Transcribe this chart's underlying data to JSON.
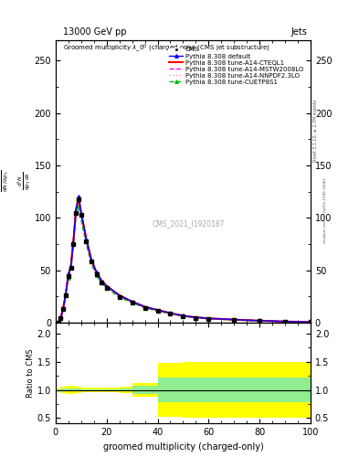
{
  "title_top": "13000 GeV pp",
  "title_right": "Jets",
  "watermark": "CMS_2021_I1920187",
  "rivet_text": "Rivet 3.1.10, ≥ 2.7M events",
  "arxiv_text": "mcplots.cern.ch [arXiv:1306.3436]",
  "xlabel": "groomed multiplicity (charged-only)",
  "ylabel_line1": "mathrm d²N",
  "ylabel_line2": "mathrm d pₜ mathrm d lambda",
  "ylabel_ratio": "Ratio to CMS",
  "xlim": [
    0,
    100
  ],
  "ylim_main": [
    0,
    270
  ],
  "ylim_ratio": [
    0.4,
    2.2
  ],
  "yticks_main": [
    0,
    50,
    100,
    150,
    200,
    250
  ],
  "yticks_ratio": [
    0.5,
    1.0,
    1.5,
    2.0
  ],
  "cms_x": [
    1,
    2,
    3,
    4,
    5,
    6,
    7,
    8,
    9,
    10,
    12,
    14,
    16,
    18,
    20,
    25,
    30,
    35,
    40,
    45,
    50,
    55,
    60,
    70,
    80,
    90,
    100
  ],
  "cms_y": [
    0,
    4,
    13,
    26,
    44,
    52,
    75,
    105,
    118,
    103,
    78,
    58,
    46,
    38,
    33,
    24,
    19,
    14,
    11,
    8.5,
    6,
    4.5,
    3.5,
    2.5,
    1.5,
    1,
    0.5
  ],
  "default_x": [
    1,
    2,
    3,
    4,
    5,
    6,
    7,
    8,
    9,
    10,
    12,
    14,
    16,
    18,
    20,
    25,
    30,
    35,
    40,
    45,
    50,
    55,
    60,
    70,
    80,
    90,
    100
  ],
  "default_y": [
    0,
    4.5,
    14,
    28,
    46,
    54,
    79,
    108,
    120,
    105,
    80,
    60,
    48,
    40,
    35,
    26,
    20,
    15,
    12,
    9,
    6.5,
    5,
    4,
    2.8,
    1.8,
    1,
    0.5
  ],
  "cteql1_x": [
    1,
    2,
    3,
    4,
    5,
    6,
    7,
    8,
    9,
    10,
    12,
    14,
    16,
    18,
    20,
    25,
    30,
    35,
    40,
    45,
    50,
    55,
    60,
    70,
    80,
    90,
    100
  ],
  "cteql1_y": [
    0,
    4.5,
    14,
    28,
    46,
    54,
    79,
    108,
    120,
    105,
    80,
    60,
    48,
    40,
    35,
    26,
    20,
    15,
    12,
    9,
    6.5,
    5,
    4,
    2.8,
    1.8,
    1,
    0.5
  ],
  "mstw_x": [
    1,
    2,
    3,
    4,
    5,
    6,
    7,
    8,
    9,
    10,
    12,
    14,
    16,
    18,
    20,
    25,
    30,
    35,
    40,
    45,
    50,
    55,
    60,
    70,
    80,
    90,
    100
  ],
  "mstw_y": [
    0,
    4.5,
    14,
    28,
    46,
    54,
    79,
    108,
    120,
    105,
    80,
    60,
    48,
    40,
    35,
    26,
    20,
    15,
    12,
    9,
    6.5,
    5,
    4,
    2.8,
    1.8,
    1,
    0.5
  ],
  "nnpdf_x": [
    1,
    2,
    3,
    4,
    5,
    6,
    7,
    8,
    9,
    10,
    12,
    14,
    16,
    18,
    20,
    25,
    30,
    35,
    40,
    45,
    50,
    55,
    60,
    70,
    80,
    90,
    100
  ],
  "nnpdf_y": [
    0,
    4.5,
    14,
    28,
    46,
    54,
    79,
    108,
    120,
    105,
    80,
    60,
    48,
    40,
    35,
    26,
    20,
    15,
    12,
    9,
    6.5,
    5,
    4,
    2.8,
    1.8,
    1,
    0.5
  ],
  "cuetp_x": [
    1,
    2,
    3,
    4,
    5,
    6,
    7,
    8,
    9,
    10,
    12,
    14,
    16,
    18,
    20,
    25,
    30,
    35,
    40,
    45,
    50,
    55,
    60,
    70,
    80,
    90,
    100
  ],
  "cuetp_y": [
    0,
    4,
    13,
    26,
    43,
    50,
    74,
    102,
    112,
    98,
    75,
    56,
    45,
    38,
    33,
    24,
    19,
    14,
    11,
    8.5,
    6,
    4.5,
    3.5,
    2.5,
    1.5,
    1,
    0.5
  ],
  "ratio_yellow_x_edges": [
    0,
    2,
    4,
    6,
    8,
    10,
    15,
    20,
    25,
    30,
    40,
    50,
    100
  ],
  "ratio_yellow_y_lo": [
    0.97,
    0.95,
    0.93,
    0.93,
    0.95,
    0.96,
    0.96,
    0.96,
    0.95,
    0.88,
    0.52,
    0.5,
    0.5
  ],
  "ratio_yellow_y_hi": [
    1.03,
    1.05,
    1.07,
    1.07,
    1.05,
    1.04,
    1.04,
    1.04,
    1.05,
    1.12,
    1.48,
    1.5,
    1.5
  ],
  "ratio_green_x_edges": [
    0,
    2,
    4,
    6,
    8,
    10,
    15,
    20,
    25,
    30,
    40,
    50,
    100
  ],
  "ratio_green_y_lo": [
    0.99,
    0.98,
    0.97,
    0.97,
    0.98,
    0.99,
    0.99,
    0.99,
    0.98,
    0.93,
    0.78,
    0.78,
    0.78
  ],
  "ratio_green_y_hi": [
    1.01,
    1.02,
    1.03,
    1.03,
    1.02,
    1.01,
    1.01,
    1.01,
    1.02,
    1.07,
    1.22,
    1.22,
    1.22
  ],
  "color_default": "#0000ff",
  "color_cteql1": "#ff0000",
  "color_mstw": "#ff00ff",
  "color_nnpdf": "#ff88ff",
  "color_cuetp": "#00bb00",
  "color_cms": "#000000",
  "bg_color": "#ffffff"
}
